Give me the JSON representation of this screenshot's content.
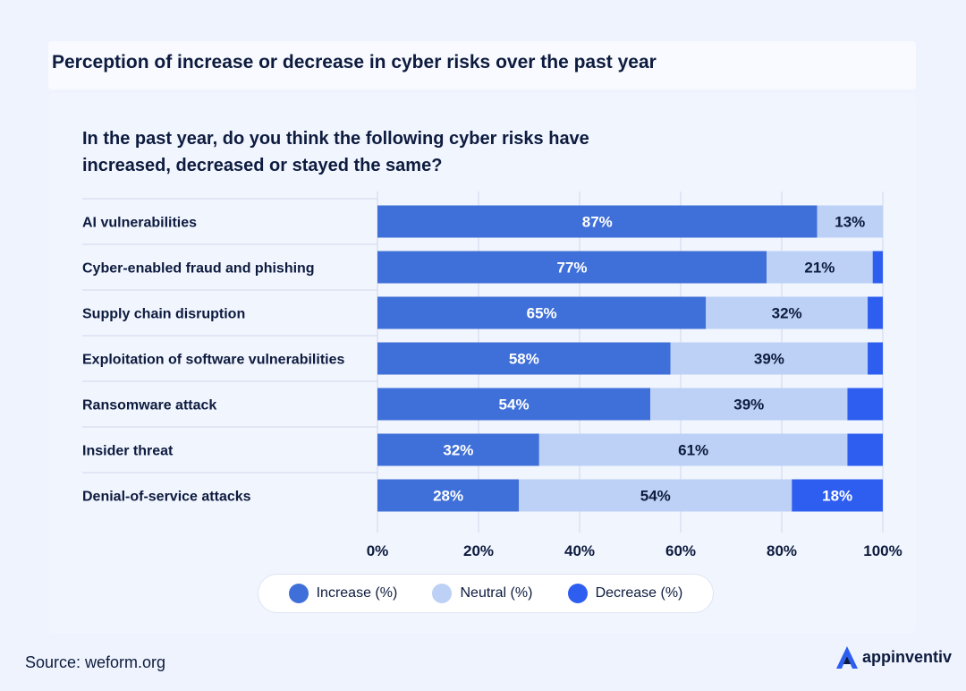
{
  "title": "Perception of increase or decrease in cyber risks over the past year",
  "question": "In the past year, do you think the following cyber risks have increased, decreased or stayed the same?",
  "source": "Source: weform.org",
  "brand": {
    "name": "appinventiv",
    "logo_icon": "a-logo-icon"
  },
  "colors": {
    "increase": "#3f6fd8",
    "neutral": "#bcd1f5",
    "decrease": "#2d5ef0",
    "text_dark": "#0d1b3e"
  },
  "legend": [
    {
      "label": "Increase (%)",
      "color": "#3f6fd8"
    },
    {
      "label": "Neutral (%)",
      "color": "#bcd1f5"
    },
    {
      "label": "Decrease (%)",
      "color": "#2d5ef0"
    }
  ],
  "chart_data": {
    "type": "bar",
    "orientation": "horizontal",
    "stacked": true,
    "categories": [
      "AI vulnerabilities",
      "Cyber-enabled fraud and phishing",
      "Supply chain disruption",
      "Exploitation of software vulnerabilities",
      "Ransomware attack",
      "Insider threat",
      "Denial-of-service attacks"
    ],
    "series": [
      {
        "name": "Increase (%)",
        "values": [
          87,
          77,
          65,
          58,
          54,
          32,
          28
        ],
        "labels": [
          "87%",
          "77%",
          "65%",
          "58%",
          "54%",
          "32%",
          "28%"
        ]
      },
      {
        "name": "Neutral (%)",
        "values": [
          13,
          21,
          32,
          39,
          39,
          61,
          54
        ],
        "labels": [
          "13%",
          "21%",
          "32%",
          "39%",
          "39%",
          "61%",
          "54%"
        ]
      },
      {
        "name": "Decrease (%)",
        "values": [
          1.5,
          3,
          4,
          3.5,
          8,
          8.5,
          18
        ],
        "labels": [
          "",
          "",
          "",
          "",
          "",
          "",
          "18%"
        ]
      }
    ],
    "xlim": [
      0,
      100
    ],
    "xticks": [
      "0%",
      "20%",
      "40%",
      "60%",
      "80%",
      "100%"
    ],
    "xtick_values": [
      0,
      20,
      40,
      60,
      80,
      100
    ],
    "grid": true,
    "legend_position": "bottom"
  }
}
